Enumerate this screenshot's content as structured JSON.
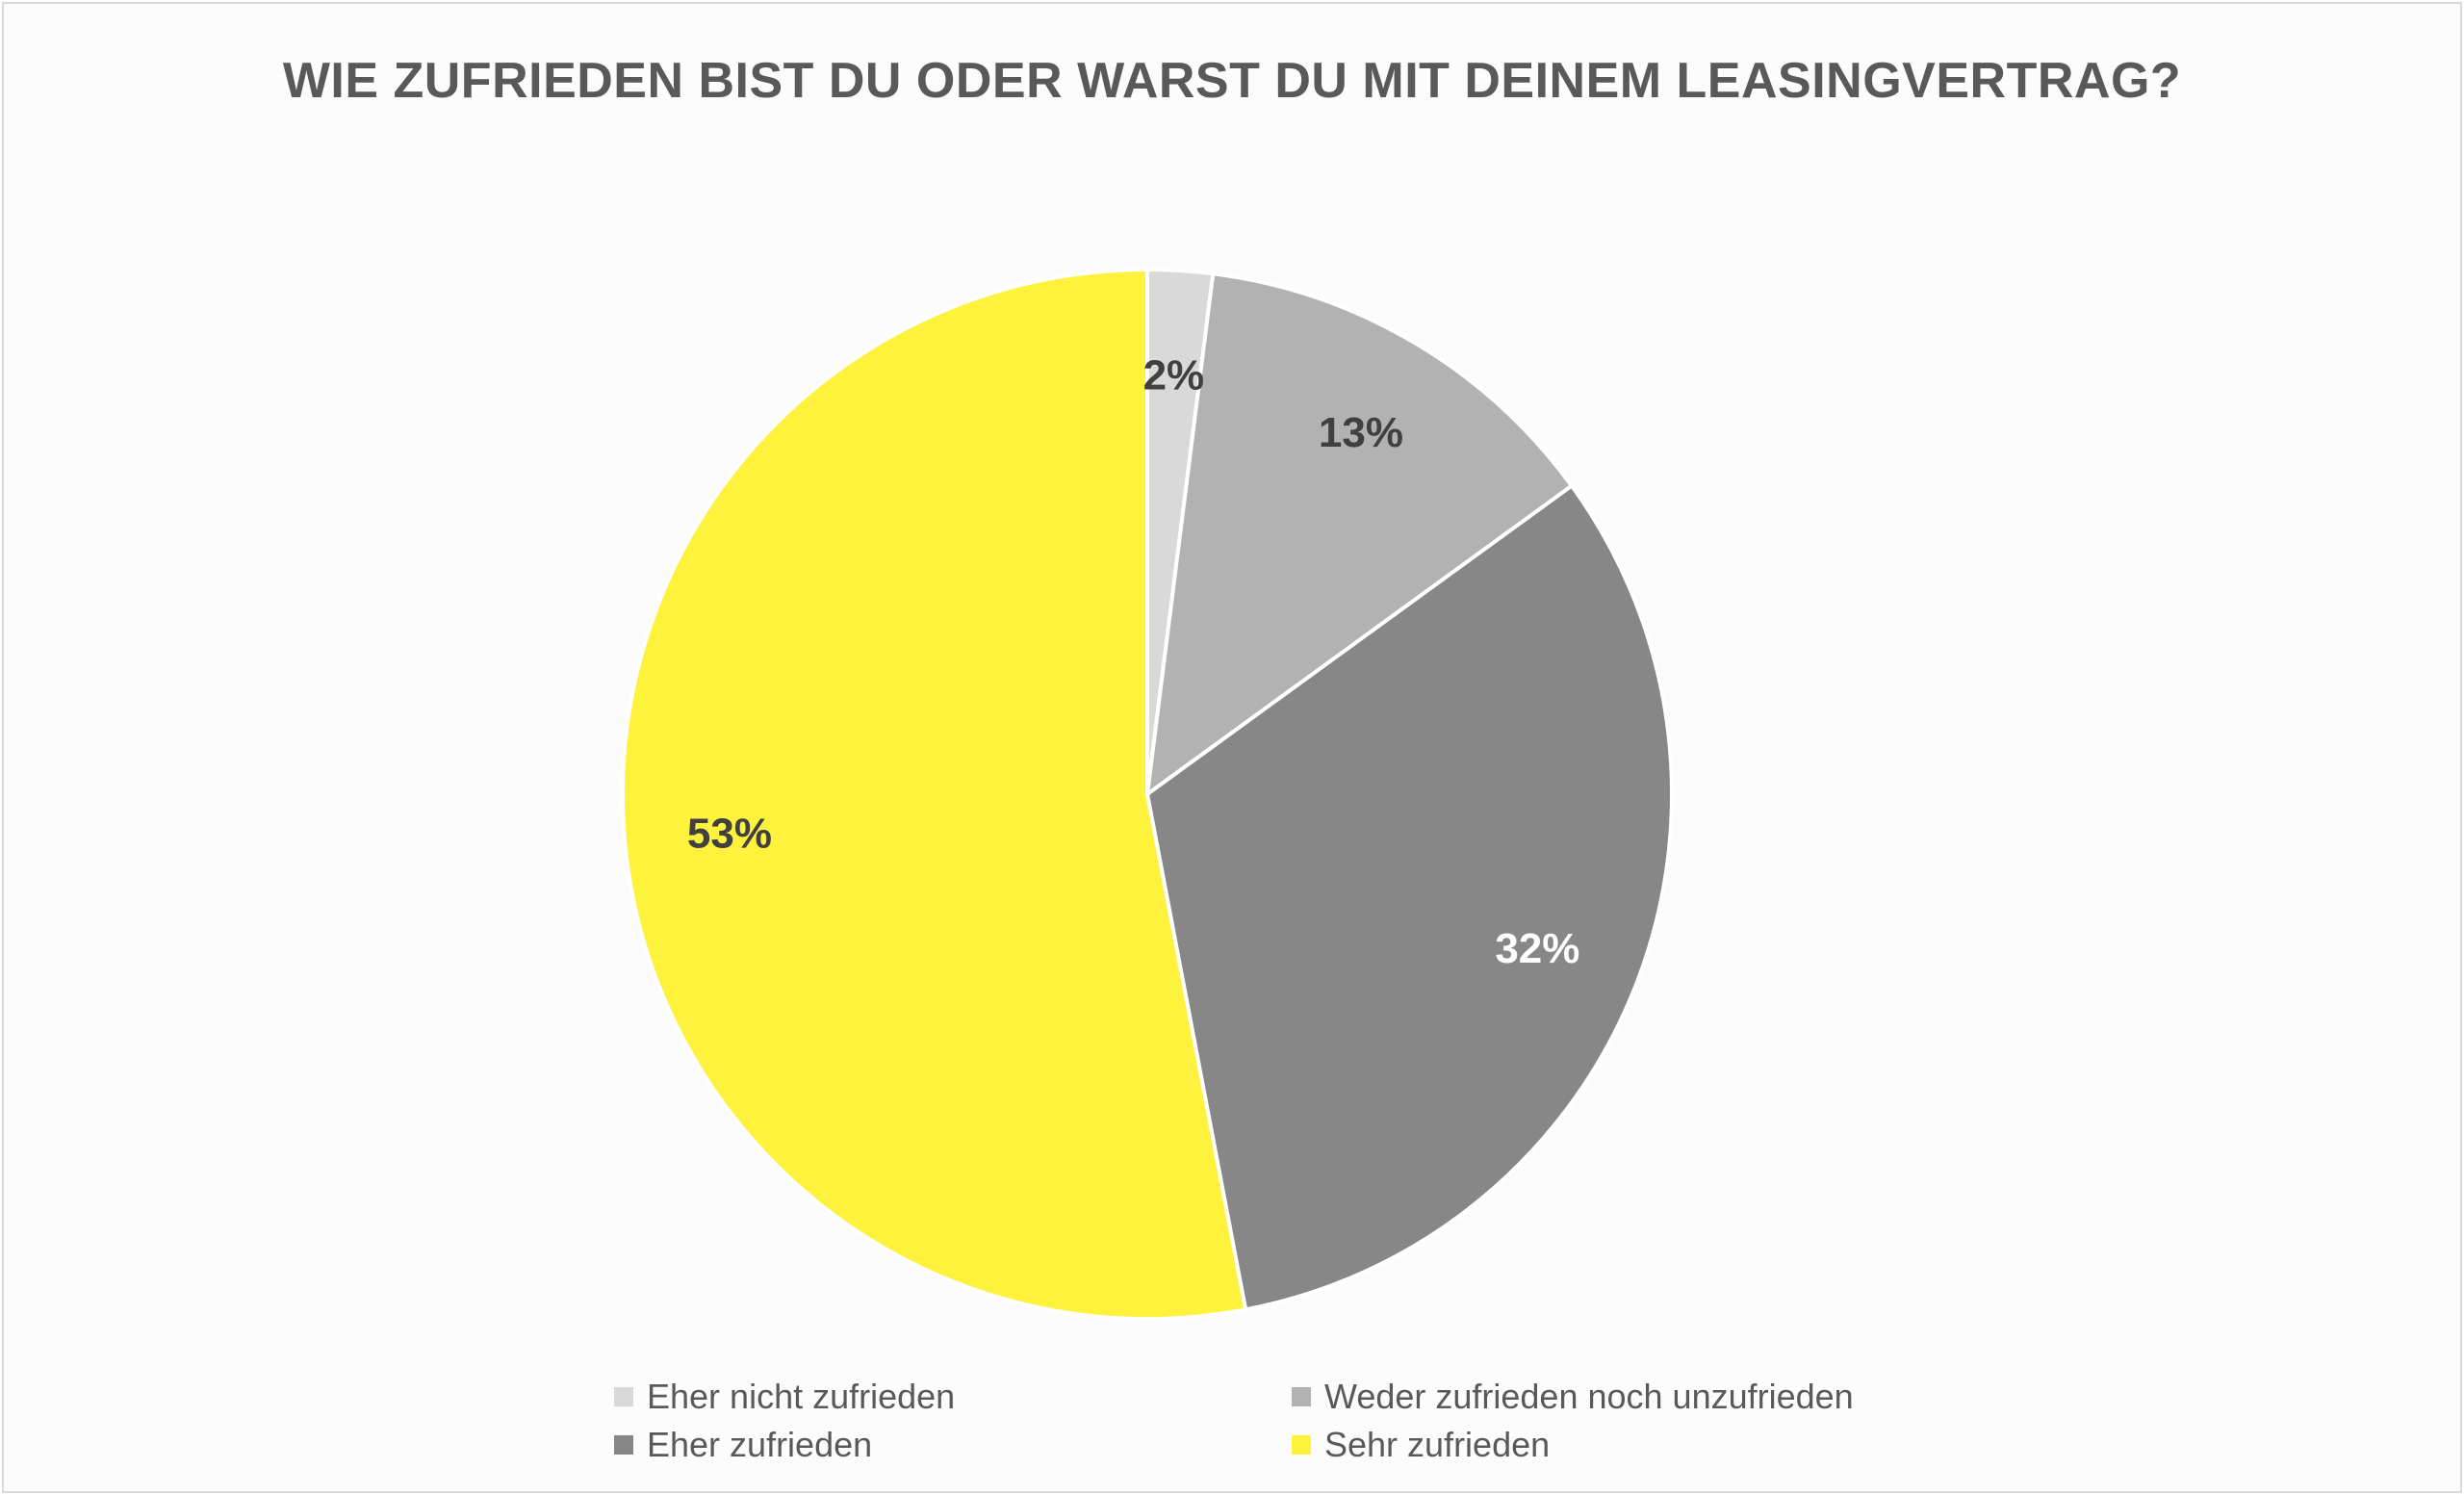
{
  "chart_data": {
    "type": "pie",
    "title": "WIE ZUFRIEDEN BIST DU ODER WARST DU MIT DEINEM LEASINGVERTRAG?",
    "categories": [
      "Eher nicht zufrieden",
      "Weder zufrieden noch unzufrieden",
      "Eher zufrieden",
      "Sehr zufrieden"
    ],
    "values": [
      2,
      13,
      32,
      53
    ],
    "data_labels": [
      "2%",
      "13%",
      "32%",
      "53%"
    ],
    "colors": [
      "#d9d9d9",
      "#b2b2b2",
      "#878787",
      "#fff23d"
    ],
    "label_colors": [
      "#404040",
      "#404040",
      "#ffffff",
      "#404040"
    ],
    "legend_position": "bottom"
  }
}
